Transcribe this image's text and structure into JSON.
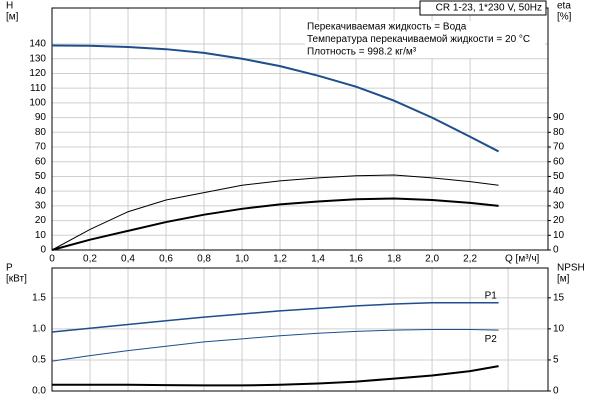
{
  "chart_data": [
    {
      "type": "line",
      "title": "CR 1-23, 1*230 V, 50Hz",
      "annotations": [
        "Перекачиваемая жидкость = Вода",
        "Температура перекачиваемой жидкости = 20 °C",
        "Плотность = 998.2 кг/м³"
      ],
      "x_label": "Q [м³/ч]",
      "y_label": [
        "H",
        "[м]"
      ],
      "y2_label": [
        "eta",
        "[%]"
      ],
      "x": [
        0,
        0.2,
        0.4,
        0.6,
        0.8,
        1.0,
        1.2,
        1.4,
        1.6,
        1.8,
        2.0,
        2.2,
        2.35
      ],
      "series": [
        {
          "color": "#1f4e8c",
          "linewidth": 2,
          "values": [
            139,
            138.8,
            138,
            136.5,
            134,
            130,
            125,
            118.5,
            111,
            101.5,
            90,
            77,
            67
          ]
        },
        {
          "color": "#000000",
          "linewidth": 1,
          "axis": "y2",
          "values": [
            0,
            14,
            26,
            34,
            39,
            44,
            47,
            49,
            50.5,
            51,
            49,
            46.5,
            44
          ]
        },
        {
          "color": "#000000",
          "linewidth": 2,
          "axis": "y2",
          "values": [
            0,
            7,
            13,
            19,
            24,
            28,
            31,
            33,
            34.5,
            35,
            34,
            32,
            30
          ]
        }
      ],
      "xlim": [
        0,
        2.61
      ],
      "ylim": [
        0,
        164.5
      ],
      "y2lim": [
        0,
        164.5
      ],
      "xticks": [
        0,
        {
          "value": 0.2,
          "label": "0,2"
        },
        {
          "value": 0.4,
          "label": "0,4"
        },
        {
          "value": 0.6,
          "label": "0,6"
        },
        {
          "value": 0.8,
          "label": "0,8"
        },
        {
          "value": 1.0,
          "label": "1,0"
        },
        {
          "value": 1.2,
          "label": "1,2"
        },
        {
          "value": 1.4,
          "label": "1,4"
        },
        {
          "value": 1.6,
          "label": "1,6"
        },
        {
          "value": 1.8,
          "label": "1,8"
        },
        {
          "value": 2.0,
          "label": "2,0"
        },
        {
          "value": 2.2,
          "label": "2,2"
        }
      ],
      "yticks": [
        0,
        10,
        20,
        30,
        40,
        50,
        60,
        70,
        80,
        90,
        100,
        110,
        120,
        130,
        140
      ],
      "y2ticks": [
        0,
        10,
        20,
        30,
        40,
        50,
        60,
        70,
        80,
        90
      ],
      "grid": true
    },
    {
      "type": "line",
      "y_label": [
        "P",
        "[кВт]"
      ],
      "y2_label": [
        "NPSH",
        "[м]"
      ],
      "x": [
        0,
        0.2,
        0.4,
        0.6,
        0.8,
        1.0,
        1.2,
        1.4,
        1.6,
        1.8,
        2.0,
        2.2,
        2.35
      ],
      "series": [
        {
          "name": "P1",
          "color": "#1f4e8c",
          "linewidth": 1.5,
          "values": [
            0.95,
            1.01,
            1.07,
            1.13,
            1.19,
            1.24,
            1.29,
            1.33,
            1.37,
            1.4,
            1.42,
            1.42,
            1.42
          ]
        },
        {
          "name": "P2",
          "color": "#1f4e8c",
          "linewidth": 1,
          "values": [
            0.48,
            0.57,
            0.65,
            0.72,
            0.79,
            0.84,
            0.89,
            0.93,
            0.96,
            0.98,
            0.99,
            0.99,
            0.98
          ]
        },
        {
          "color": "#000000",
          "linewidth": 2,
          "axis": "y2",
          "values": [
            1,
            1,
            1,
            0.95,
            0.9,
            0.9,
            1.0,
            1.2,
            1.5,
            2.0,
            2.5,
            3.2,
            4.0
          ]
        }
      ],
      "xlim": [
        0,
        2.61
      ],
      "ylim": [
        0,
        1.98
      ],
      "y2lim": [
        0,
        19.8
      ],
      "xticks": [
        0,
        0.2,
        0.4,
        0.6,
        0.8,
        1.0,
        1.2,
        1.4,
        1.6,
        1.8,
        2.0,
        2.2,
        2.4
      ],
      "yticks": [
        {
          "value": 0,
          "label": "0.0"
        },
        0.5,
        {
          "value": 1,
          "label": "1.0"
        },
        1.5
      ],
      "y2ticks": [
        0,
        5,
        10,
        15
      ],
      "grid": true
    }
  ]
}
